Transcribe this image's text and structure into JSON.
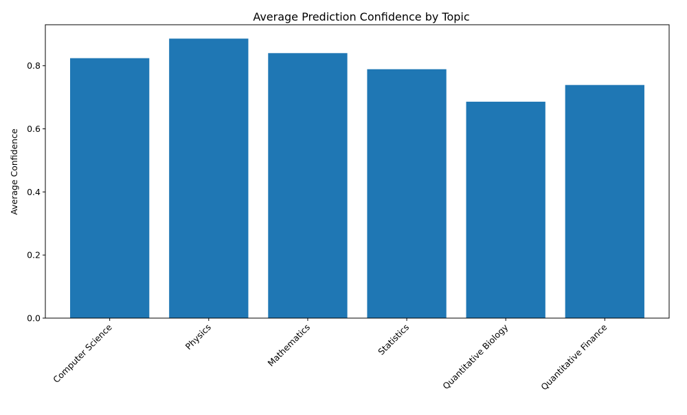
{
  "chart_data": {
    "type": "bar",
    "title": "Average Prediction Confidence by Topic",
    "xlabel": "",
    "ylabel": "Average Confidence",
    "categories": [
      "Computer Science",
      "Physics",
      "Mathematics",
      "Statistics",
      "Quantitative Biology",
      "Quantitative Finance"
    ],
    "values": [
      0.824,
      0.886,
      0.84,
      0.789,
      0.686,
      0.739
    ],
    "ylim": [
      0,
      0.93
    ],
    "yticks": [
      0.0,
      0.2,
      0.4,
      0.6,
      0.8
    ],
    "ytick_labels": [
      "0.0",
      "0.2",
      "0.4",
      "0.6",
      "0.8"
    ],
    "bar_color": "#1f77b4",
    "grid": false,
    "legend": "none"
  }
}
